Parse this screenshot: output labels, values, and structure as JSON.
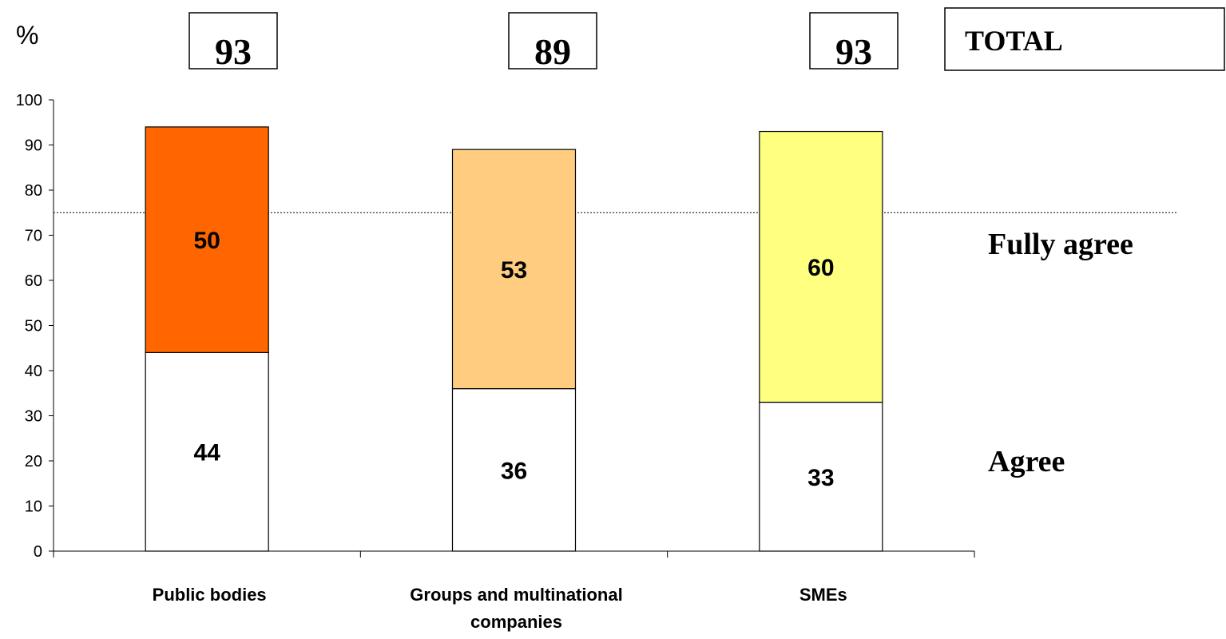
{
  "chart_data": {
    "type": "bar",
    "stacked": true,
    "unit_label": "%",
    "categories": [
      "Public bodies",
      "Groups and multinational companies",
      "SMEs"
    ],
    "totals": [
      "93",
      "89",
      "93"
    ],
    "total_label": "TOTAL",
    "series": [
      {
        "name": "Agree",
        "values": [
          44,
          36,
          33
        ]
      },
      {
        "name": "Fully agree",
        "values": [
          50,
          53,
          60
        ]
      }
    ],
    "colors": {
      "agree": "#ffffff",
      "fully_agree": [
        "#ff6600",
        "#ffcc80",
        "#ffff80"
      ]
    },
    "ylim": [
      0,
      100
    ],
    "yticks": [
      0,
      10,
      20,
      30,
      40,
      50,
      60,
      70,
      80,
      90,
      100
    ],
    "reference_line": 75,
    "grid": false,
    "legend": "right"
  }
}
